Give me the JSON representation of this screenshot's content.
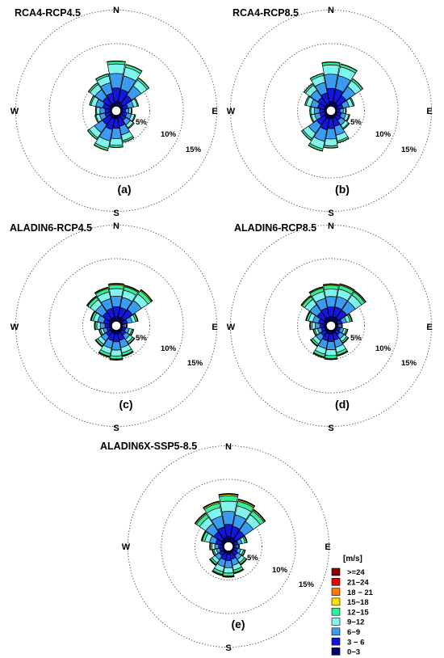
{
  "figure": {
    "legend": {
      "title": "[m/s]",
      "bins": [
        {
          "label": ">=24",
          "color": "#8b0000"
        },
        {
          "label": "21−24",
          "color": "#e80000"
        },
        {
          "label": "18 − 21",
          "color": "#ff7a00"
        },
        {
          "label": "15−18",
          "color": "#ffe000"
        },
        {
          "label": "12−15",
          "color": "#33ee99"
        },
        {
          "label": "9−12",
          "color": "#7ff5ee"
        },
        {
          "label": "6−9",
          "color": "#3b9bf0"
        },
        {
          "label": "3 − 6",
          "color": "#1515e0"
        },
        {
          "label": "0−3",
          "color": "#00006e"
        }
      ]
    },
    "compass": {
      "north": "N",
      "east": "E",
      "south": "S",
      "west": "W"
    }
  },
  "chart_data": [
    {
      "type": "windrose",
      "title": "RCA4-RCP4.5",
      "panel_label": "(a)",
      "radial_axis": {
        "unit": "%",
        "rings": [
          5,
          10,
          15
        ],
        "ring_labels": [
          "5%",
          "10%",
          "15%"
        ]
      },
      "directions_deg": [
        0,
        22.5,
        45,
        67.5,
        90,
        112.5,
        135,
        157.5,
        180,
        202.5,
        225,
        247.5,
        270,
        292.5,
        315,
        337.5
      ],
      "totals_pct": [
        9.0,
        8.5,
        7.0,
        3.6,
        2.2,
        3.0,
        3.4,
        5.5,
        6.4,
        7.2,
        6.0,
        3.4,
        3.2,
        4.5,
        5.8,
        6.6
      ],
      "speed_bin_fractions": [
        0.1,
        0.3,
        0.32,
        0.21,
        0.06,
        0.01,
        0,
        0,
        0
      ]
    },
    {
      "type": "windrose",
      "title": "RCA4-RCP8.5",
      "panel_label": "(b)",
      "radial_axis": {
        "unit": "%",
        "rings": [
          5,
          10,
          15
        ],
        "ring_labels": [
          "5%",
          "10%",
          "15%"
        ]
      },
      "directions_deg": [
        0,
        22.5,
        45,
        67.5,
        90,
        112.5,
        135,
        157.5,
        180,
        202.5,
        225,
        247.5,
        270,
        292.5,
        315,
        337.5
      ],
      "totals_pct": [
        8.8,
        8.6,
        6.8,
        3.8,
        2.1,
        2.9,
        3.5,
        5.6,
        6.5,
        7.3,
        6.2,
        3.3,
        3.3,
        4.4,
        5.6,
        6.7
      ],
      "speed_bin_fractions": [
        0.1,
        0.3,
        0.32,
        0.21,
        0.06,
        0.01,
        0,
        0,
        0
      ]
    },
    {
      "type": "windrose",
      "title": "ALADIN6-RCP4.5",
      "panel_label": "(c)",
      "radial_axis": {
        "unit": "%",
        "rings": [
          5,
          10,
          15
        ],
        "ring_labels": [
          "5%",
          "10%",
          "15%"
        ]
      },
      "directions_deg": [
        0,
        22.5,
        45,
        67.5,
        90,
        112.5,
        135,
        157.5,
        180,
        202.5,
        225,
        247.5,
        270,
        292.5,
        315,
        337.5
      ],
      "totals_pct": [
        7.5,
        7.3,
        7.8,
        3.5,
        1.2,
        2.6,
        3.5,
        5.3,
        5.9,
        5.5,
        4.1,
        2.6,
        3.4,
        4.3,
        6.2,
        6.9
      ],
      "speed_bin_fractions": [
        0.12,
        0.26,
        0.28,
        0.2,
        0.1,
        0.025,
        0.01,
        0.004,
        0.001
      ]
    },
    {
      "type": "windrose",
      "title": "ALADIN6-RCP8.5",
      "panel_label": "(d)",
      "radial_axis": {
        "unit": "%",
        "rings": [
          5,
          10,
          15
        ],
        "ring_labels": [
          "5%",
          "10%",
          "15%"
        ]
      },
      "directions_deg": [
        0,
        22.5,
        45,
        67.5,
        90,
        112.5,
        135,
        157.5,
        180,
        202.5,
        225,
        247.5,
        270,
        292.5,
        315,
        337.5
      ],
      "totals_pct": [
        7.4,
        7.6,
        7.5,
        3.4,
        1.3,
        2.5,
        3.3,
        5.2,
        5.8,
        5.6,
        4.0,
        2.7,
        3.3,
        4.2,
        6.3,
        7.0
      ],
      "speed_bin_fractions": [
        0.12,
        0.26,
        0.28,
        0.2,
        0.1,
        0.025,
        0.01,
        0.004,
        0.001
      ]
    },
    {
      "type": "windrose",
      "title": "ALADIN6X-SSP5-8.5",
      "panel_label": "(e)",
      "radial_axis": {
        "unit": "%",
        "rings": [
          5,
          10,
          15
        ],
        "ring_labels": [
          "5%",
          "10%",
          "15%"
        ]
      },
      "directions_deg": [
        0,
        22.5,
        45,
        67.5,
        90,
        112.5,
        135,
        157.5,
        180,
        202.5,
        225,
        247.5,
        270,
        292.5,
        315,
        337.5
      ],
      "totals_pct": [
        9.6,
        8.7,
        8.0,
        2.9,
        1.2,
        2.5,
        3.5,
        4.6,
        5.2,
        5.0,
        3.6,
        2.4,
        2.8,
        4.6,
        7.2,
        8.3
      ],
      "speed_bin_fractions": [
        0.11,
        0.25,
        0.27,
        0.21,
        0.11,
        0.03,
        0.012,
        0.005,
        0.002
      ]
    }
  ]
}
